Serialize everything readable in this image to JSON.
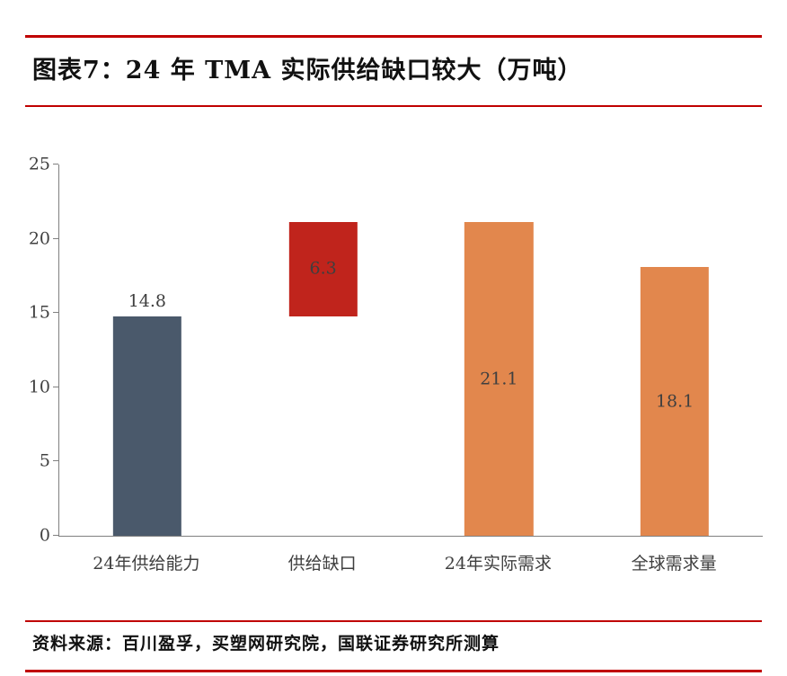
{
  "page": {
    "title": "图表7：24 年 TMA 实际供给缺口较大（万吨）",
    "source": "资料来源：百川盈孚，买塑网研究院，国联证券研究所测算",
    "accent_color": "#C00000",
    "axis_color": "#808080",
    "label_color": "#3F3F3F"
  },
  "chart_data": {
    "type": "bar",
    "title": "图表7：24 年 TMA 实际供给缺口较大（万吨）",
    "categories": [
      "24年供给能力",
      "供给缺口",
      "24年实际需求",
      "全球需求量"
    ],
    "values": [
      14.8,
      6.3,
      21.1,
      18.1
    ],
    "unit": "万吨",
    "bars": [
      {
        "slug": "supply-capacity-24",
        "category": "24年供给能力",
        "base": 0,
        "top": 14.8,
        "label": "14.8",
        "color": "#4A596B",
        "label_position": "above"
      },
      {
        "slug": "supply-gap",
        "category": "供给缺口",
        "base": 14.8,
        "top": 21.1,
        "label": "6.3",
        "color": "#C0241C",
        "label_position": "inside"
      },
      {
        "slug": "actual-demand-24",
        "category": "24年实际需求",
        "base": 0,
        "top": 21.1,
        "label": "21.1",
        "color": "#E2874D",
        "label_position": "inside"
      },
      {
        "slug": "global-demand",
        "category": "全球需求量",
        "base": 0,
        "top": 18.1,
        "label": "18.1",
        "color": "#E2874D",
        "label_position": "inside"
      }
    ],
    "ylim": [
      0,
      25
    ],
    "y_ticks": [
      0,
      5,
      10,
      15,
      20,
      25
    ],
    "xlabel": "",
    "ylabel": "",
    "grid": false,
    "legend": false,
    "note": "supply-gap bar is a floating segment from 14.8 to 21.1"
  }
}
